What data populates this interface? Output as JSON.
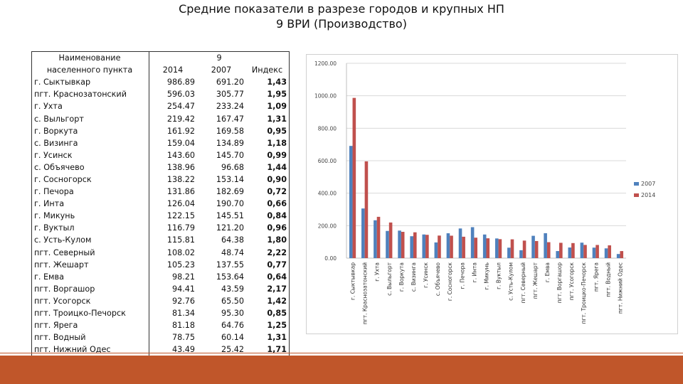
{
  "page": {
    "title_line1": "Средние показатели в разрезе городов и крупных НП",
    "title_line2": "9 ВРИ (Производство)"
  },
  "table": {
    "header_name": "Наименование населенного пункта",
    "header_group": "9",
    "col_2014": "2014",
    "col_2007": "2007",
    "col_index": "Индекс",
    "rows": [
      {
        "name": "г. Сыктывкар",
        "v2014": "986.89",
        "v2007": "691.20",
        "index": "1,43"
      },
      {
        "name": "пгт. Краснозатонский",
        "v2014": "596.03",
        "v2007": "305.77",
        "index": "1,95"
      },
      {
        "name": "г. Ухта",
        "v2014": "254.47",
        "v2007": "233.24",
        "index": "1,09"
      },
      {
        "name": "с. Выльгорт",
        "v2014": "219.42",
        "v2007": "167.47",
        "index": "1,31"
      },
      {
        "name": "г. Воркута",
        "v2014": "161.92",
        "v2007": "169.58",
        "index": "0,95"
      },
      {
        "name": "с. Визинга",
        "v2014": "159.04",
        "v2007": "134.89",
        "index": "1,18"
      },
      {
        "name": "г. Усинск",
        "v2014": "143.60",
        "v2007": "145.70",
        "index": "0,99"
      },
      {
        "name": "с. Объячево",
        "v2014": "138.96",
        "v2007": "96.68",
        "index": "1,44"
      },
      {
        "name": "г. Сосногорск",
        "v2014": "138.22",
        "v2007": "153.14",
        "index": "0,90"
      },
      {
        "name": "г. Печора",
        "v2014": "131.86",
        "v2007": "182.69",
        "index": "0,72"
      },
      {
        "name": "г. Инта",
        "v2014": "126.04",
        "v2007": "190.70",
        "index": "0,66"
      },
      {
        "name": "г. Микунь",
        "v2014": "122.15",
        "v2007": "145.51",
        "index": "0,84"
      },
      {
        "name": "г. Вуктыл",
        "v2014": "116.79",
        "v2007": "121.20",
        "index": "0,96"
      },
      {
        "name": "с. Усть-Кулом",
        "v2014": "115.81",
        "v2007": "64.38",
        "index": "1,80"
      },
      {
        "name": "пгт. Северный",
        "v2014": "108.02",
        "v2007": "48.74",
        "index": "2,22"
      },
      {
        "name": "пгт. Жешарт",
        "v2014": "105.23",
        "v2007": "137.55",
        "index": "0,77"
      },
      {
        "name": "г. Емва",
        "v2014": "98.21",
        "v2007": "153.64",
        "index": "0,64"
      },
      {
        "name": "пгт. Воргашор",
        "v2014": "94.41",
        "v2007": "43.59",
        "index": "2,17"
      },
      {
        "name": "пгт. Усогорск",
        "v2014": "92.76",
        "v2007": "65.50",
        "index": "1,42"
      },
      {
        "name": "пгт. Троицко-Печорск",
        "v2014": "81.34",
        "v2007": "95.30",
        "index": "0,85"
      },
      {
        "name": "пгт. Ярега",
        "v2014": "81.18",
        "v2007": "64.76",
        "index": "1,25"
      },
      {
        "name": "пгт. Водный",
        "v2014": "78.75",
        "v2007": "60.14",
        "index": "1,31"
      },
      {
        "name": "пгт. Нижний Одес",
        "v2014": "43.49",
        "v2007": "25.42",
        "index": "1,71"
      }
    ]
  },
  "chart_data": {
    "type": "bar",
    "categories": [
      "г. Сыктывкар",
      "пгт. Краснозатонский",
      "г. Ухта",
      "с. Выльгорт",
      "г. Воркута",
      "с. Визинга",
      "г. Усинск",
      "с. Объячево",
      "г. Сосногорск",
      "г. Печора",
      "г. Инта",
      "г. Микунь",
      "г. Вуктыл",
      "с. Усть-Кулом",
      "пгт. Северный",
      "пгт. Жешарт",
      "г. Емва",
      "пгт. Воргашор",
      "пгт. Усогорск",
      "пгт. Троицко-Печорск",
      "пгт. Ярега",
      "пгт. Водный",
      "пгт. Нижний Одес"
    ],
    "series": [
      {
        "name": "2007",
        "color": "#4f81bd",
        "values": [
          691.2,
          305.77,
          233.24,
          167.47,
          169.58,
          134.89,
          145.7,
          96.68,
          153.14,
          182.69,
          190.7,
          145.51,
          121.2,
          64.38,
          48.74,
          137.55,
          153.64,
          43.59,
          65.5,
          95.3,
          64.76,
          60.14,
          25.42
        ]
      },
      {
        "name": "2014",
        "color": "#c0504d",
        "values": [
          986.89,
          596.03,
          254.47,
          219.42,
          161.92,
          159.04,
          143.6,
          138.96,
          138.22,
          131.86,
          126.04,
          122.15,
          116.79,
          115.81,
          108.02,
          105.23,
          98.21,
          94.41,
          92.76,
          81.34,
          81.18,
          78.75,
          43.49
        ]
      }
    ],
    "yticks": [
      "0.00",
      "200.00",
      "400.00",
      "600.00",
      "800.00",
      "1000.00",
      "1200.00"
    ],
    "ylim": [
      0,
      1200
    ],
    "legend_position": "right",
    "title": "",
    "xlabel": "",
    "ylabel": ""
  },
  "colors": {
    "accent": "#c0562a"
  }
}
